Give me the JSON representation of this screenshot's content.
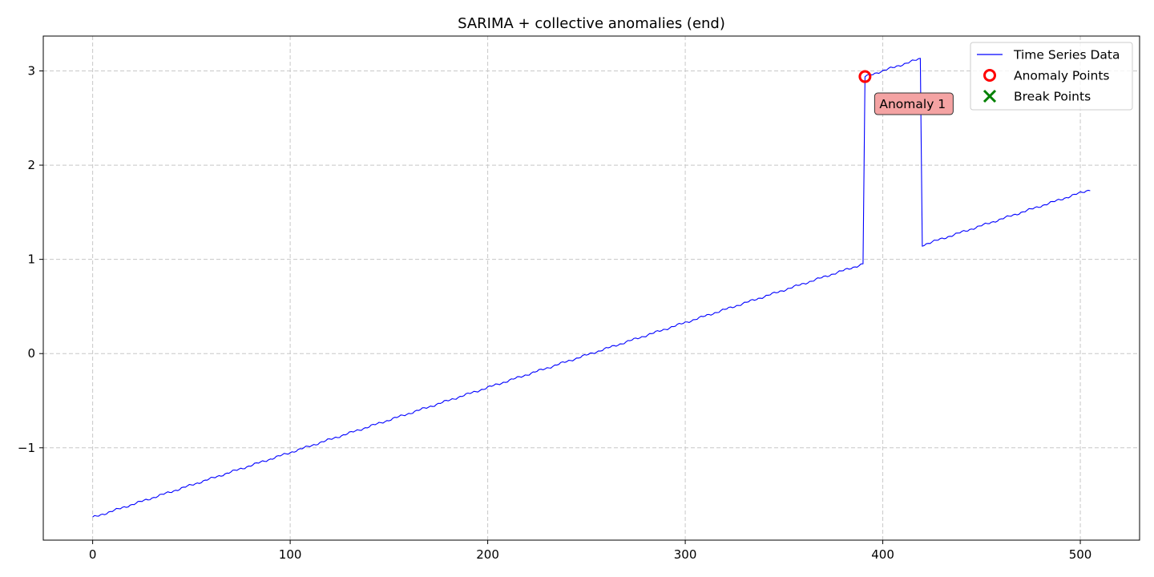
{
  "chart_data": {
    "type": "line",
    "title": "SARIMA + collective anomalies (end)",
    "xlabel": "",
    "ylabel": "",
    "xlim": [
      -25,
      530
    ],
    "ylim": [
      -1.98,
      3.37
    ],
    "xticks": [
      0,
      100,
      200,
      300,
      400,
      500
    ],
    "yticks": [
      -1,
      0,
      1,
      2,
      3
    ],
    "xtick_labels": [
      "0",
      "100",
      "200",
      "300",
      "400",
      "500"
    ],
    "ytick_labels": [
      "−1",
      "0",
      "1",
      "2",
      "3"
    ],
    "grid": true,
    "legend_position": "top-right",
    "series": [
      {
        "name": "Time Series Data",
        "color": "#0000ff",
        "segments": [
          {
            "x_start": 0,
            "x_end": 390,
            "y_start": -1.74,
            "y_end": 0.95
          },
          {
            "x_start": 391,
            "x_end": 419,
            "y_start": 2.94,
            "y_end": 3.13
          },
          {
            "x_start": 420,
            "x_end": 505,
            "y_start": 1.15,
            "y_end": 1.74
          }
        ]
      }
    ],
    "anomaly_points": {
      "name": "Anomaly Points",
      "color": "#ff0000",
      "points": [
        {
          "x": 391,
          "y": 2.94
        }
      ]
    },
    "break_points": {
      "name": "Break Points",
      "color": "#008000",
      "points": []
    },
    "annotations": [
      {
        "text": "Anomaly 1",
        "x": 391,
        "y": 2.94,
        "box_color": "#f4a3a3"
      }
    ]
  }
}
